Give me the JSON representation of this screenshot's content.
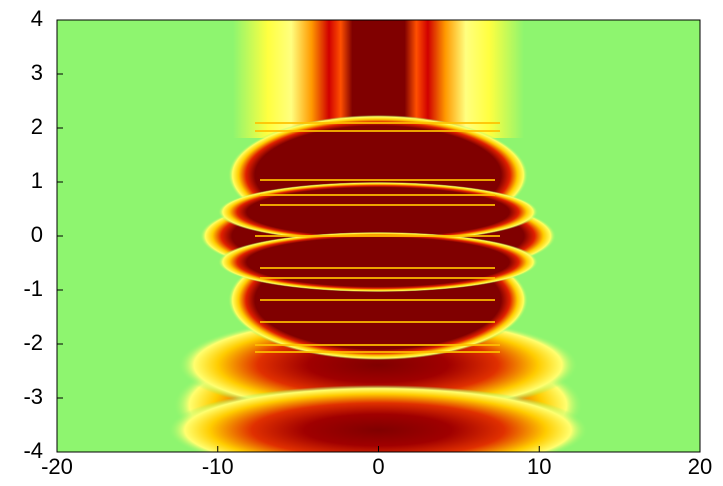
{
  "chart_data": {
    "type": "heatmap",
    "xlim": [
      -20,
      20
    ],
    "ylim": [
      -4,
      4
    ],
    "xticks": [
      -20,
      -10,
      0,
      10,
      20
    ],
    "yticks": [
      -4,
      -3,
      -2,
      -1,
      0,
      1,
      2,
      3,
      4
    ]
  }
}
